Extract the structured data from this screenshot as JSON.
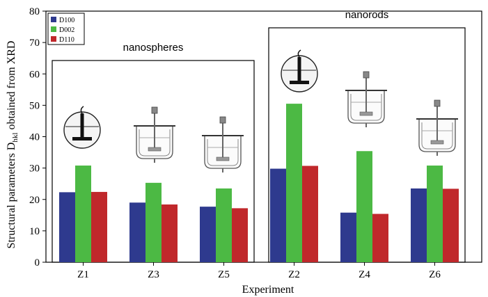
{
  "chart_data": {
    "type": "bar",
    "categories": [
      "Z1",
      "Z3",
      "Z5",
      "Z2",
      "Z4",
      "Z6"
    ],
    "series": [
      {
        "name": "D100",
        "color": "#2e3a8e",
        "values": [
          22.3,
          19.0,
          17.7,
          29.8,
          15.8,
          23.5
        ]
      },
      {
        "name": "D002",
        "color": "#4cb944",
        "values": [
          30.8,
          25.3,
          23.5,
          50.5,
          35.4,
          30.8
        ]
      },
      {
        "name": "D110",
        "color": "#c0282b",
        "values": [
          22.4,
          18.4,
          17.2,
          30.7,
          15.4,
          23.4
        ]
      }
    ],
    "xlabel": "Experiment",
    "ylabel_main": "Structural parameters D",
    "ylabel_sub": "hkl",
    "ylabel_tail": " obtained from XRD",
    "ylim": [
      0,
      80
    ],
    "yticks": [
      0,
      10,
      20,
      30,
      40,
      50,
      60,
      70,
      80
    ],
    "grid": false,
    "legend_position": "top-left",
    "groups": [
      {
        "label": "nanospheres",
        "categories": [
          "Z1",
          "Z3",
          "Z5"
        ]
      },
      {
        "label": "nanorods",
        "categories": [
          "Z2",
          "Z4",
          "Z6"
        ]
      }
    ],
    "reactor_icons": [
      {
        "category": "Z1",
        "icon": "stirred-beaker-icon"
      },
      {
        "category": "Z3",
        "icon": "jacketed-reactor-icon"
      },
      {
        "category": "Z5",
        "icon": "jacketed-reactor-icon"
      },
      {
        "category": "Z2",
        "icon": "stirred-beaker-icon"
      },
      {
        "category": "Z4",
        "icon": "jacketed-reactor-icon"
      },
      {
        "category": "Z6",
        "icon": "jacketed-reactor-icon"
      }
    ]
  }
}
